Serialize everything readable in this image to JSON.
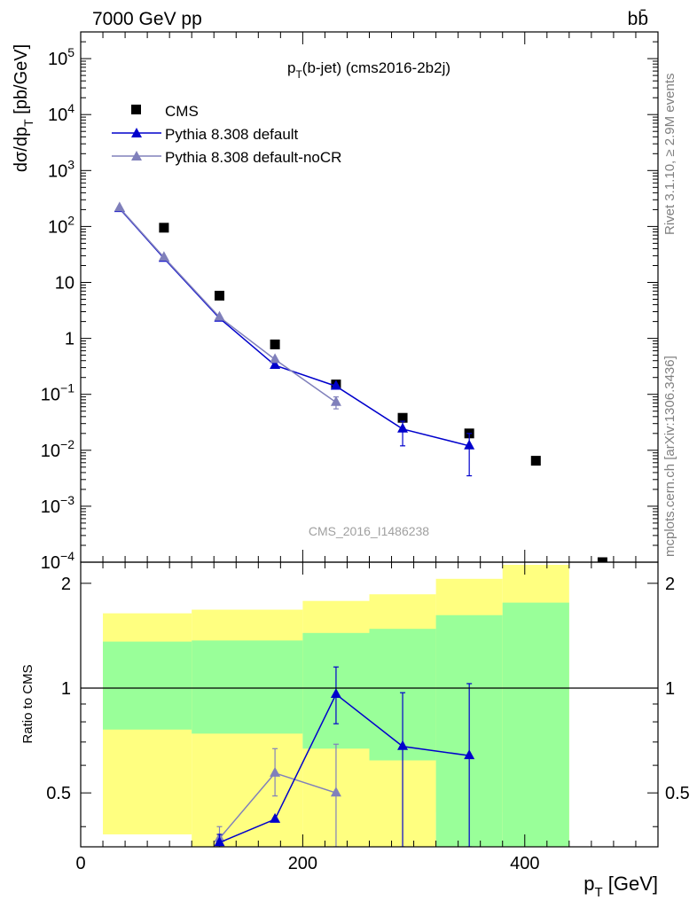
{
  "header": {
    "energy_label": "7000 GeV pp",
    "process_label": "bb̄"
  },
  "side_labels": {
    "rivet": "Rivet 3.1.10, ≥ 2.9M events",
    "mcplots": "mcplots.cern.ch [arXiv:1306.3436]"
  },
  "chart_data": [
    {
      "type": "scatter",
      "panel": "main",
      "title_base": "p",
      "title_sub": "T",
      "title_rest": "(b-jet) (cms2016-2b2j)",
      "watermark": "CMS_2016_I1486238",
      "ylabel": {
        "pre": "dσ/dp",
        "sub": "T",
        "post": " [pb/GeV]"
      },
      "yscale": "log",
      "ylim": [
        0.0001,
        300000
      ],
      "xlim": [
        0,
        520
      ],
      "yticks": [
        {
          "v": 100000,
          "label": "10",
          "exp": "5"
        },
        {
          "v": 10000,
          "label": "10",
          "exp": "4"
        },
        {
          "v": 1000,
          "label": "10",
          "exp": "3"
        },
        {
          "v": 100,
          "label": "10",
          "exp": "2"
        },
        {
          "v": 10,
          "label": "10",
          "exp": ""
        },
        {
          "v": 1,
          "label": "1",
          "exp": ""
        },
        {
          "v": 0.1,
          "label": "10",
          "exp": "−1"
        },
        {
          "v": 0.01,
          "label": "10",
          "exp": "−2"
        },
        {
          "v": 0.001,
          "label": "10",
          "exp": "−3"
        },
        {
          "v": 0.0001,
          "label": "10",
          "exp": "−4"
        }
      ],
      "legend": [
        {
          "name": "CMS",
          "color": "#000000",
          "marker": "square"
        },
        {
          "name": "Pythia 8.308 default",
          "color": "#0000cc",
          "marker": "triangle"
        },
        {
          "name": "Pythia 8.308 default-noCR",
          "color": "#8080bb",
          "marker": "triangle"
        }
      ],
      "series": [
        {
          "name": "CMS",
          "color": "#000000",
          "points": [
            {
              "x": 75,
              "y": 95
            },
            {
              "x": 125,
              "y": 5.8
            },
            {
              "x": 175,
              "y": 0.78
            },
            {
              "x": 230,
              "y": 0.15
            },
            {
              "x": 290,
              "y": 0.038
            },
            {
              "x": 350,
              "y": 0.02
            },
            {
              "x": 410,
              "y": 0.0065
            },
            {
              "x": 470,
              "y": 0.0001
            }
          ]
        },
        {
          "name": "Pythia 8.308 default",
          "color": "#0000cc",
          "points": [
            {
              "x": 35,
              "y": 210
            },
            {
              "x": 75,
              "y": 27
            },
            {
              "x": 125,
              "y": 2.3
            },
            {
              "x": 175,
              "y": 0.33
            },
            {
              "x": 230,
              "y": 0.14
            },
            {
              "x": 290,
              "y": 0.024,
              "ylo": 0.012,
              "yhi": 0.033
            },
            {
              "x": 350,
              "y": 0.012,
              "ylo": 0.0035,
              "yhi": 0.02
            }
          ]
        },
        {
          "name": "Pythia 8.308 default-noCR",
          "color": "#8080bb",
          "points": [
            {
              "x": 35,
              "y": 215
            },
            {
              "x": 75,
              "y": 28
            },
            {
              "x": 125,
              "y": 2.4
            },
            {
              "x": 175,
              "y": 0.42
            },
            {
              "x": 230,
              "y": 0.072,
              "ylo": 0.055,
              "yhi": 0.09
            }
          ]
        }
      ]
    },
    {
      "type": "line",
      "panel": "ratio",
      "ylabel": "Ratio to CMS",
      "xlabel": {
        "base": "p",
        "sub": "T",
        "rest": " [GeV]"
      },
      "xlim": [
        0,
        520
      ],
      "ylim": [
        0.35,
        2.3
      ],
      "xticks": [
        0,
        200,
        400
      ],
      "yticks": [
        0.5,
        1,
        2
      ],
      "reference_line": 1,
      "bands": [
        {
          "x0": 20,
          "x1": 100,
          "yellow": [
            0.38,
            1.64
          ],
          "green": [
            0.76,
            1.36
          ]
        },
        {
          "x0": 100,
          "x1": 200,
          "yellow": [
            0.35,
            1.68
          ],
          "green": [
            0.74,
            1.37
          ]
        },
        {
          "x0": 200,
          "x1": 260,
          "yellow": [
            0.35,
            1.78
          ],
          "green": [
            0.67,
            1.44
          ]
        },
        {
          "x0": 260,
          "x1": 320,
          "yellow": [
            0.35,
            1.86
          ],
          "green": [
            0.62,
            1.48
          ]
        },
        {
          "x0": 320,
          "x1": 380,
          "yellow": [
            0.44,
            2.06
          ],
          "green": [
            0.35,
            1.62
          ]
        },
        {
          "x0": 380,
          "x1": 440,
          "yellow": [
            0.35,
            2.26
          ],
          "green": [
            0.35,
            1.76
          ]
        }
      ],
      "series": [
        {
          "name": "Pythia 8.308 default",
          "color": "#0000cc",
          "points": [
            {
              "x": 125,
              "y": 0.36,
              "ylo": 0.35,
              "yhi": 0.38
            },
            {
              "x": 175,
              "y": 0.42
            },
            {
              "x": 230,
              "y": 0.96,
              "ylo": 0.79,
              "yhi": 1.15
            },
            {
              "x": 290,
              "y": 0.68,
              "ylo": 0.35,
              "yhi": 0.97
            },
            {
              "x": 350,
              "y": 0.64,
              "ylo": 0.35,
              "yhi": 1.03
            }
          ]
        },
        {
          "name": "Pythia 8.308 default-noCR",
          "color": "#8080bb",
          "points": [
            {
              "x": 125,
              "y": 0.37,
              "ylo": 0.35,
              "yhi": 0.4
            },
            {
              "x": 175,
              "y": 0.57,
              "ylo": 0.49,
              "yhi": 0.67
            },
            {
              "x": 230,
              "y": 0.5,
              "ylo": 0.35,
              "yhi": 0.69
            }
          ]
        }
      ],
      "colors": {
        "yellow": "#ffff80",
        "green": "#99ff99"
      }
    }
  ]
}
